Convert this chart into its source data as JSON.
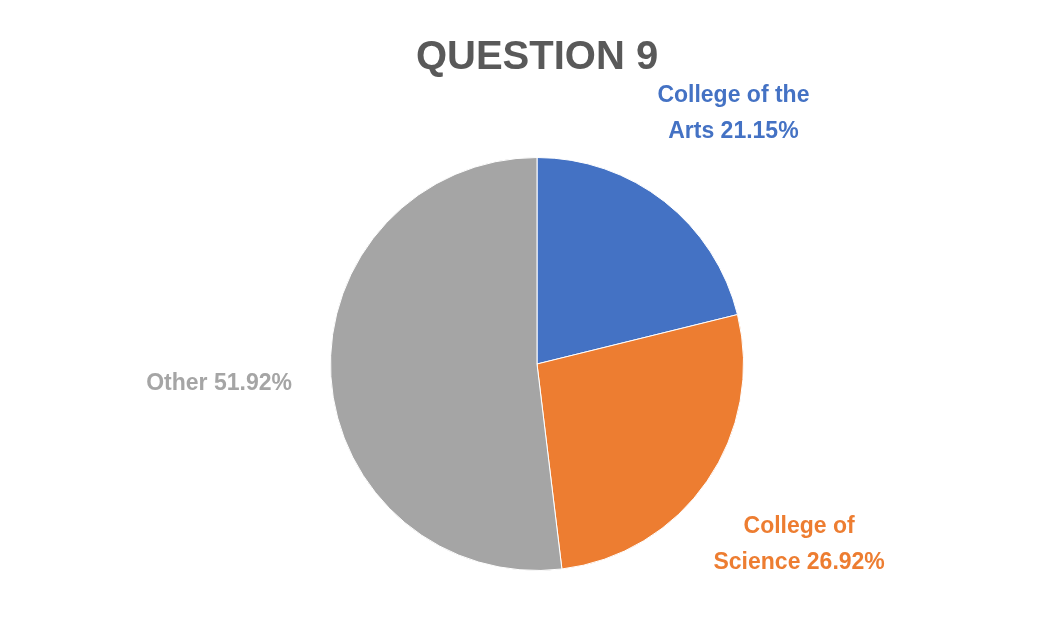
{
  "chart_data": {
    "type": "pie",
    "title": "QUESTION 9",
    "categories": [
      "College of the Arts",
      "College of Science",
      "Other"
    ],
    "values": [
      21.15,
      26.92,
      51.92
    ],
    "colors": [
      "#4472c4",
      "#ed7d31",
      "#a5a5a5"
    ],
    "value_labels": [
      "21.15%",
      "26.92%",
      "51.92%"
    ],
    "legend": false
  }
}
